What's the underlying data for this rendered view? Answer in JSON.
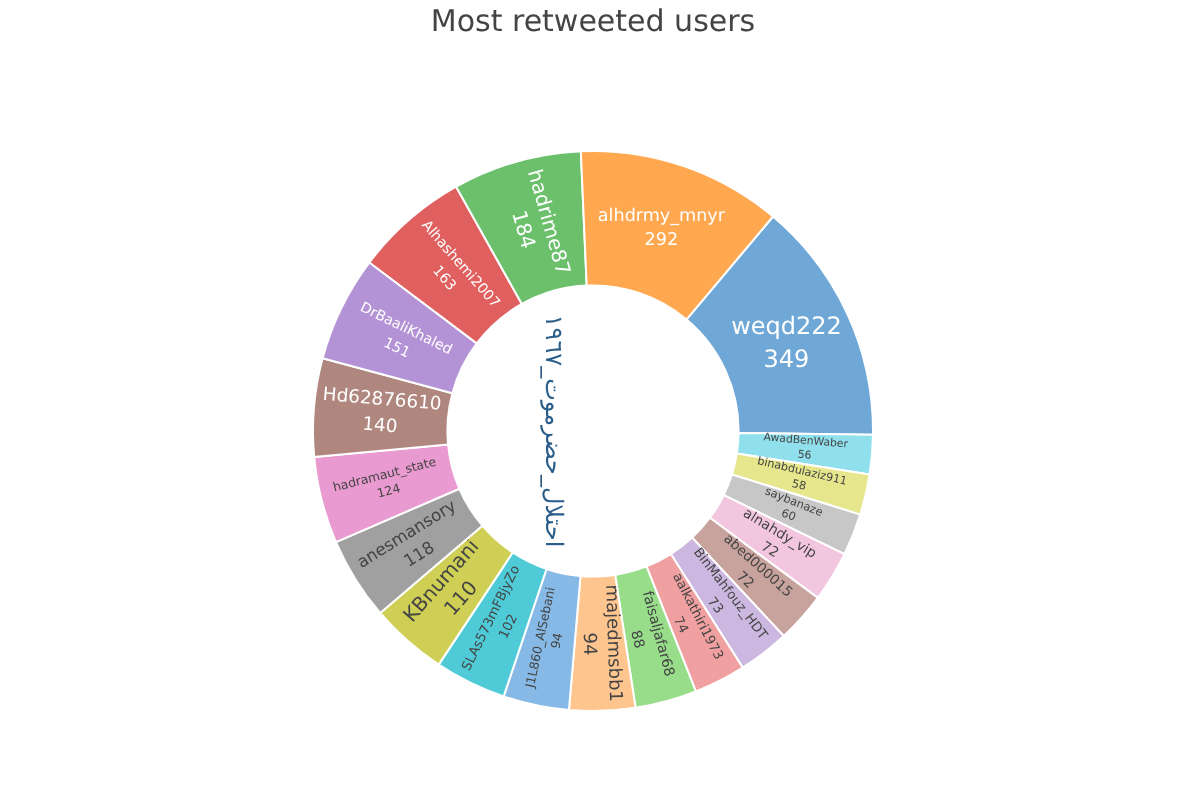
{
  "chart_data": {
    "type": "donut",
    "title": "Most retweeted users",
    "categories": [
      "weqd222",
      "AwadBenWaber",
      "binabdulaziz911",
      "saybanaze",
      "alnahdy_vip",
      "abed000015",
      "BinMahfouz_HDT",
      "aalkathiri1973",
      "faisaljafar68",
      "majedmsbb1",
      "J1L860_AlSebani",
      "SLAs573mFBjyZo",
      "KBnumani",
      "anesmansory",
      "hadramaut_state",
      "Hd62876610",
      "DrBaaliKhaled",
      "Alhashemi2007",
      "hadrime87",
      "alhdrmy_mnyr"
    ],
    "values": [
      349,
      56,
      58,
      60,
      72,
      72,
      73,
      74,
      88,
      94,
      94,
      102,
      110,
      118,
      124,
      140,
      151,
      163,
      184,
      292
    ],
    "colors": [
      "#6fa8d6",
      "#8fe0ec",
      "#e6e68c",
      "#c7c7c7",
      "#f3c6e0",
      "#c8a39e",
      "#cbb7e0",
      "#f0a0a0",
      "#98dd8a",
      "#ffc58f",
      "#86b9e6",
      "#4ecbd6",
      "#cfcf55",
      "#a0a0a0",
      "#e99ad0",
      "#b0877f",
      "#b393d6",
      "#e06060",
      "#6cc06c",
      "#ffa850"
    ],
    "data_labels": true,
    "annotations": [
      "احتلال_حضرموت_١٩٦٧"
    ]
  }
}
